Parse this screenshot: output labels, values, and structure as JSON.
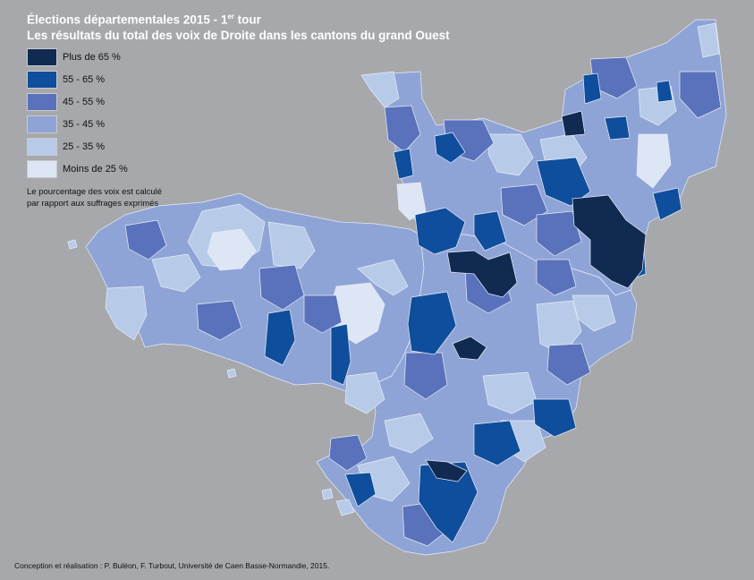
{
  "title": {
    "line1_main": "Élections départementales 2015 - 1",
    "line1_sup": "er",
    "line1_end": " tour",
    "line2": "Les résultats du total des voix de Droite dans les cantons du grand Ouest"
  },
  "legend": [
    {
      "label": "Plus de 65 %",
      "color": "#102a52"
    },
    {
      "label": "55 - 65 %",
      "color": "#0e4e9c"
    },
    {
      "label": "45 - 55 %",
      "color": "#5a72bb"
    },
    {
      "label": "35 - 45 %",
      "color": "#8fa4d6"
    },
    {
      "label": "25 - 35 %",
      "color": "#b7cbe9"
    },
    {
      "label": "Moins de 25 %",
      "color": "#dde6f5"
    }
  ],
  "note": {
    "line1": "Le pourcentage des voix est calculé",
    "line2": "par rapport aux suffrages exprimés"
  },
  "credit": "Conception et réalisation : P. Buléon, F. Turbout, Université de Caen Basse-Normandie, 2015."
}
